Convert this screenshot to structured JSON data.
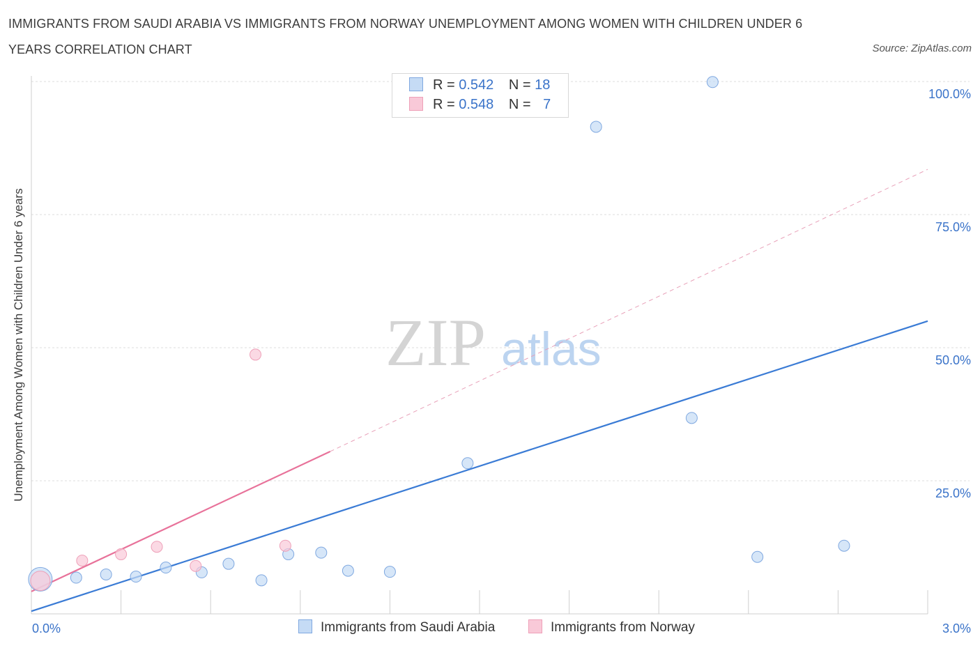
{
  "title": "IMMIGRANTS FROM SAUDI ARABIA VS IMMIGRANTS FROM NORWAY UNEMPLOYMENT AMONG WOMEN WITH CHILDREN UNDER 6 YEARS CORRELATION CHART",
  "source": "Source: ZipAtlas.com",
  "watermark": {
    "zip": "ZIP",
    "atlas": "atlas"
  },
  "colors": {
    "blue": "#3a7bd5",
    "blue_fill": "#c5dbf5",
    "pink": "#e8729a",
    "pink_fill": "#f9c9d8",
    "tick_text": "#3a73c9"
  },
  "legend": {
    "rows": [
      {
        "r_label": "R =",
        "r_value": "0.542",
        "n_label": "N =",
        "n_value": "18"
      },
      {
        "r_label": "R =",
        "r_value": "0.548",
        "n_label": "N =",
        "n_value": "7"
      }
    ]
  },
  "chart_data": {
    "type": "scatter",
    "title": "IMMIGRANTS FROM SAUDI ARABIA VS IMMIGRANTS FROM NORWAY UNEMPLOYMENT AMONG WOMEN WITH CHILDREN UNDER 6 YEARS CORRELATION CHART",
    "xlabel": "",
    "ylabel": "Unemployment Among Women with Children Under 6 years",
    "xlim": [
      0,
      3.0
    ],
    "ylim": [
      0,
      100
    ],
    "x_tick_labels": [
      "0.0%",
      "3.0%"
    ],
    "y_tick_labels": [
      "25.0%",
      "50.0%",
      "75.0%",
      "100.0%"
    ],
    "y_ticks": [
      25,
      50,
      75,
      100
    ],
    "grid": true,
    "series": [
      {
        "name": "Immigrants from Saudi Arabia",
        "color": "#3a7bd5",
        "points": [
          {
            "x": 0.03,
            "y": 6.5,
            "big": true
          },
          {
            "x": 0.15,
            "y": 6.8
          },
          {
            "x": 0.25,
            "y": 7.4
          },
          {
            "x": 0.35,
            "y": 7.0
          },
          {
            "x": 0.45,
            "y": 8.7
          },
          {
            "x": 0.57,
            "y": 7.8
          },
          {
            "x": 0.66,
            "y": 9.4
          },
          {
            "x": 0.77,
            "y": 6.3
          },
          {
            "x": 0.86,
            "y": 11.2
          },
          {
            "x": 0.97,
            "y": 11.5
          },
          {
            "x": 1.06,
            "y": 8.1
          },
          {
            "x": 1.2,
            "y": 7.9
          },
          {
            "x": 1.46,
            "y": 28.3
          },
          {
            "x": 1.89,
            "y": 91.5
          },
          {
            "x": 2.21,
            "y": 36.8
          },
          {
            "x": 2.28,
            "y": 99.9
          },
          {
            "x": 2.43,
            "y": 10.7
          },
          {
            "x": 2.72,
            "y": 12.8
          }
        ],
        "trend": {
          "x": [
            0,
            3.0
          ],
          "y": [
            0.5,
            55.0
          ]
        }
      },
      {
        "name": "Immigrants from Norway",
        "color": "#e8729a",
        "points": [
          {
            "x": 0.03,
            "y": 6.2
          },
          {
            "x": 0.17,
            "y": 10.0
          },
          {
            "x": 0.3,
            "y": 11.2
          },
          {
            "x": 0.42,
            "y": 12.6
          },
          {
            "x": 0.55,
            "y": 9.0
          },
          {
            "x": 0.75,
            "y": 48.7
          },
          {
            "x": 0.85,
            "y": 12.8
          }
        ],
        "trend": {
          "x": [
            0,
            1.0
          ],
          "y": [
            4.2,
            30.5
          ]
        },
        "trend_extension": {
          "x": [
            1.0,
            3.0
          ],
          "y": [
            30.5,
            83.5
          ]
        }
      }
    ]
  }
}
